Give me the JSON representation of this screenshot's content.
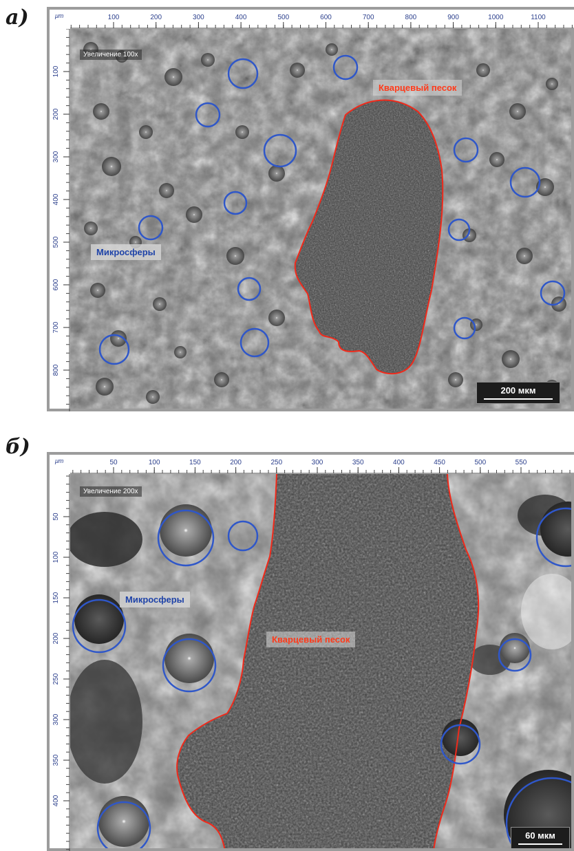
{
  "panels": [
    {
      "label": "а)",
      "unit": "μm",
      "magnification": "Увеличение 100x",
      "microspheres_label": "Микросферы",
      "sand_label": "Кварцевый песок",
      "scale_bar": "200 мкм",
      "x_ticks": [
        "100",
        "200",
        "300",
        "400",
        "500",
        "600",
        "700",
        "800",
        "900",
        "1000",
        "1100"
      ],
      "y_ticks": [
        "100",
        "200",
        "300",
        "400",
        "500",
        "600",
        "700",
        "800"
      ],
      "colors": {
        "circle": "#2f57c9",
        "boundary": "#f02a1b"
      }
    },
    {
      "label": "б)",
      "unit": "μm",
      "magnification": "Увеличение 200x",
      "microspheres_label": "Микросферы",
      "sand_label": "Кварцевый песок",
      "scale_bar": "60 мкм",
      "x_ticks": [
        "50",
        "100",
        "150",
        "200",
        "250",
        "300",
        "350",
        "400",
        "450",
        "500",
        "550"
      ],
      "y_ticks": [
        "50",
        "100",
        "150",
        "200",
        "250",
        "300",
        "350",
        "400"
      ],
      "colors": {
        "circle": "#2f57c9",
        "boundary": "#f02a1b"
      }
    }
  ]
}
